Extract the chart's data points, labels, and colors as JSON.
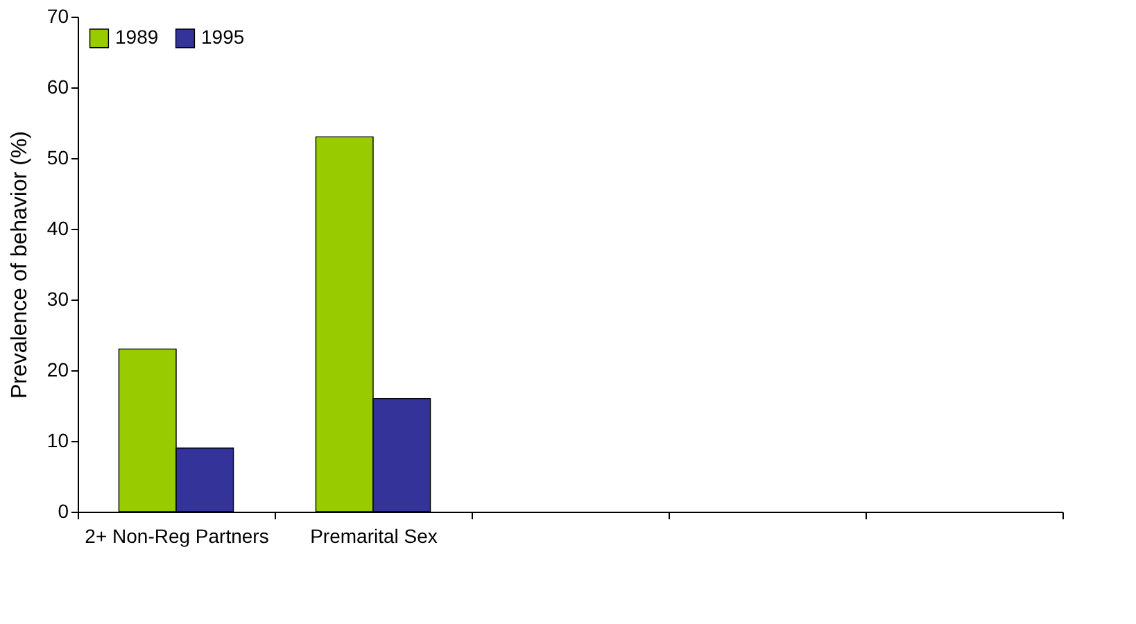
{
  "chart_data": {
    "type": "bar",
    "ylabel": "Prevalence of behavior (%)",
    "categories": [
      "2+ Non-Reg Partners",
      "Premarital Sex",
      null,
      null,
      null
    ],
    "series": [
      {
        "name": "1989",
        "color": "#99cc00",
        "values": [
          23,
          53,
          null,
          null,
          null
        ]
      },
      {
        "name": "1995",
        "color": "#333399",
        "values": [
          9,
          16,
          null,
          null,
          null
        ]
      }
    ],
    "ylim": [
      0,
      70
    ],
    "yticks": [
      0,
      10,
      20,
      30,
      40,
      50,
      60,
      70
    ],
    "grid": false,
    "legend": "top left"
  }
}
